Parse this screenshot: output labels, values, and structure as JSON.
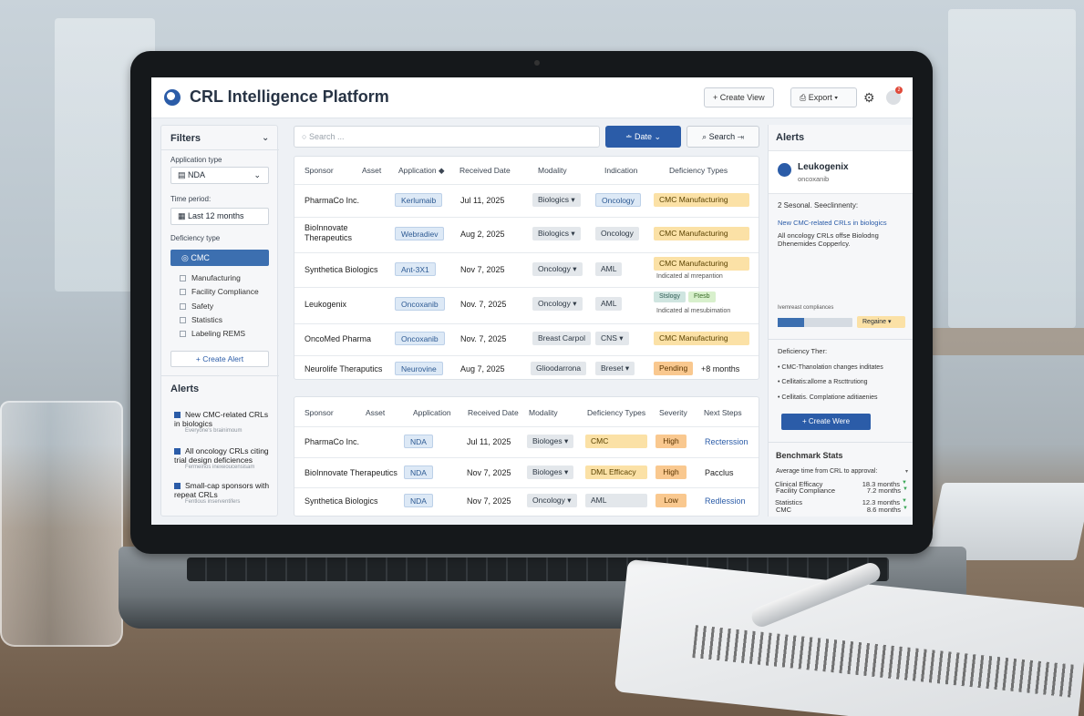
{
  "app": {
    "title": "CRL Intelligence Platform",
    "create_view": "+ Create View",
    "export": "Export",
    "notif_count": "2"
  },
  "filters": {
    "title": "Filters",
    "app_type_label": "Application type",
    "app_type_value": "NDA",
    "time_label": "Time period:",
    "time_value": "Last 12 months",
    "def_label": "Deficiency type",
    "def_selected": "CMC",
    "options": [
      "Manufacturing",
      "Facility Compliance",
      "Safety",
      "Statistics",
      "Labeling REMS"
    ],
    "create_alert": "+ Create Alert"
  },
  "left_alerts": {
    "title": "Alerts",
    "items": [
      {
        "text": "New CMC-related CRLs in biologics",
        "sub": "Everyone's brainimoum"
      },
      {
        "text": "All oncology CRLs citing trial design deficiences",
        "sub": "Fermeinos inexeoucensisam"
      },
      {
        "text": "Small-cap sponsors with repeat CRLs",
        "sub": "Fentlous inserventifers"
      }
    ]
  },
  "toolbar": {
    "search_placeholder": "Search ...",
    "date": "Date",
    "search_btn": "Search"
  },
  "table1": {
    "headers": [
      "Sponsor",
      "Asset",
      "Application",
      "Received Date",
      "Modality",
      "Indication",
      "Deficiency Types"
    ],
    "rows": [
      {
        "sponsor": "PharmaCo Inc.",
        "asset": "Kerlumaib",
        "date": "Jul 11, 2025",
        "modality": "Biologics ▾",
        "indication": "Oncology",
        "def1": "CMC",
        "def2": "Manufacturing",
        "note": ""
      },
      {
        "sponsor": "BioInnovate Therapeutics",
        "asset": "Webradiev",
        "date": "Aug 2, 2025",
        "modality": "Biologics ▾",
        "indication": "Oncology",
        "def1": "CMC",
        "def2": "Manufacturing",
        "note": ""
      },
      {
        "sponsor": "Synthetica Biologics",
        "asset": "Ant-3X1",
        "date": "Nov 7, 2025",
        "modality": "Oncology ▾",
        "indication": "AML",
        "def1": "CMC",
        "def2": "Manufacturing",
        "note": "Indicated al mrepantion"
      },
      {
        "sponsor": "Leukogenix",
        "asset": "Oncoxanib",
        "date": "Nov. 7, 2025",
        "modality": "Oncology ▾",
        "indication": "AML",
        "def1": "Stslogy",
        "def2": "Ftesb",
        "note": "Indicated al mesubimation"
      },
      {
        "sponsor": "OncoMed Pharma",
        "asset": "Oncoxanib",
        "date": "Nov. 7, 2025",
        "modality": "Breast Carpol",
        "indication": "CNS ▾",
        "def1": "CMC",
        "def2": "Manufacturing",
        "note": ""
      },
      {
        "sponsor": "Neurolife Theraputics",
        "asset": "Neurovine",
        "date": "Aug 7, 2025",
        "modality": "Glioodarrona",
        "indication": "Breset ▾",
        "def1": "Pending",
        "def2": "+8 months",
        "note": ""
      }
    ]
  },
  "table2": {
    "headers": [
      "Sponsor",
      "Asset",
      "Application",
      "Received Date",
      "Modality",
      "Deficiency Types",
      "Severity",
      "Next Steps"
    ],
    "rows": [
      {
        "sponsor": "PharmaCo Inc.",
        "app": "NDA",
        "date": "Jul 11, 2025",
        "modality": "Biologes ▾",
        "def": "CMC",
        "severity": "High",
        "next": "Recterssion"
      },
      {
        "sponsor": "BioInnovate Therapeutics",
        "app": "NDA",
        "date": "Nov 7, 2025",
        "modality": "Biologes ▾",
        "def": "DML  Efficacy",
        "severity": "High",
        "next": "Pacclus"
      },
      {
        "sponsor": "Synthetica Biologics",
        "app": "NDA",
        "date": "Nov 7, 2025",
        "modality": "Oncology ▾",
        "def": "AML",
        "severity": "Low",
        "next": "Redlession"
      }
    ]
  },
  "right": {
    "title": "Alerts",
    "company": "Leukogenix",
    "company_sub": "oncoxanib",
    "line1": "2 Sesonal. Seeclinnenty:",
    "line2": "New CMC-related CRLs in biologics",
    "line3": "All oncology CRLs offse Biolodng Dhenemides Copperlcy.",
    "comp_label": "Ivemreast compliances",
    "progress": 0.35,
    "regime": "Regaine ▾",
    "def_title": "Deficiency Ther:",
    "bullets": [
      "CMC-Thanolation changes inditates",
      "Cellitatis:allome a Rscttrutiong",
      "Cellitatis. Complatione aditiaenies"
    ],
    "create_btn": "+ Create Were",
    "bench_title": "Benchmark Stats",
    "bench_sub": "Average time from CRL to approval:",
    "stats": [
      {
        "name": "Facility Compliance",
        "val": "7.2  months"
      },
      {
        "name": "CMC",
        "val": "8.6  months"
      },
      {
        "name": "Clinical Efficacy",
        "val": "18.3  months"
      },
      {
        "name": "Statistics",
        "val": "12.3  months"
      }
    ]
  }
}
